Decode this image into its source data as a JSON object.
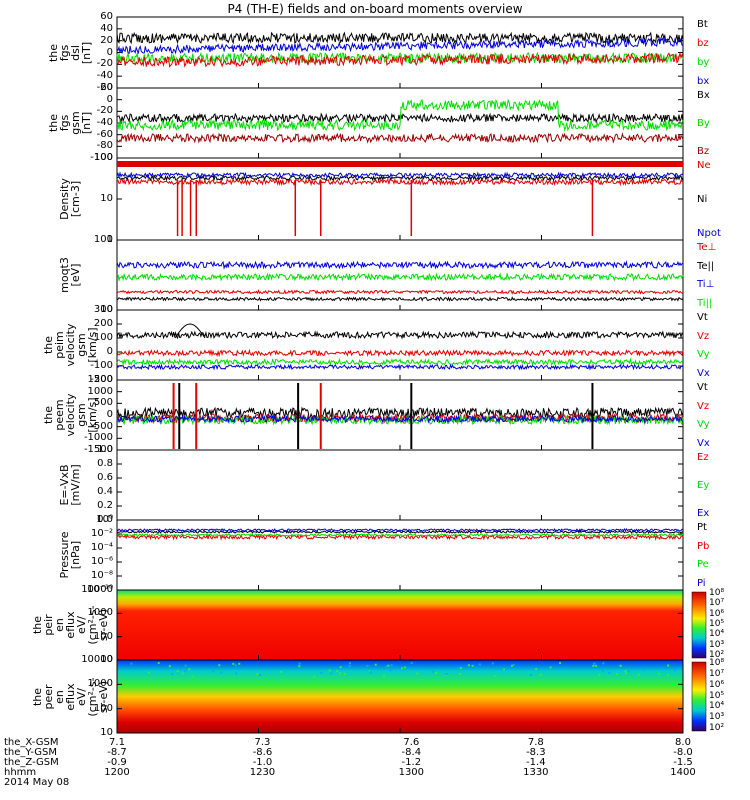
{
  "title": "P4 (TH-E) fields and on-board moments overview",
  "panels": [
    {
      "id": "fgs_dsl",
      "ylabel": [
        "the",
        "fgs",
        "dsl",
        "[nT]"
      ],
      "ticks": [
        "60",
        "40",
        "20",
        "0",
        "-20",
        "-40",
        "-60"
      ],
      "yrange": [
        -60,
        60
      ],
      "legend": [
        {
          "t": "Bt",
          "c": "#000000"
        },
        {
          "t": "bz",
          "c": "#e00000"
        },
        {
          "t": "by",
          "c": "#00dd00"
        },
        {
          "t": "bx",
          "c": "#0000dd"
        }
      ]
    },
    {
      "id": "fgs_gsm",
      "ylabel": [
        "the",
        "fgs",
        "gsm",
        "[nT]"
      ],
      "ticks": [
        "20",
        "0",
        "-20",
        "-40",
        "-60",
        "-80",
        "-100"
      ],
      "yrange": [
        -100,
        20
      ],
      "legend": [
        {
          "t": "Bx",
          "c": "#000000"
        },
        {
          "t": "By",
          "c": "#00dd00"
        },
        {
          "t": "Bz",
          "c": "#990000"
        }
      ]
    },
    {
      "id": "density",
      "ylabel": [
        "Density",
        "[cm-3]"
      ],
      "ticks": [
        "100",
        "10",
        "1"
      ],
      "log": true,
      "legend": [
        {
          "t": "Ne",
          "c": "#e00000"
        },
        {
          "t": "Ni",
          "c": "#000000"
        },
        {
          "t": "Npot",
          "c": "#0000dd"
        }
      ]
    },
    {
      "id": "temp",
      "ylabel": [
        "moqt3",
        "[eV]"
      ],
      "ticks": [
        "100",
        "10"
      ],
      "log": true,
      "legend": [
        {
          "t": "Te⊥",
          "c": "#e00000"
        },
        {
          "t": "Te||",
          "c": "#000000"
        },
        {
          "t": "Ti⊥",
          "c": "#0000dd"
        },
        {
          "t": "Ti||",
          "c": "#00dd00"
        }
      ]
    },
    {
      "id": "peim",
      "ylabel": [
        "the",
        "peim",
        "velocity",
        "gsm",
        "[km/s]"
      ],
      "ticks": [
        "300",
        "200",
        "100",
        "0",
        "-100",
        "-200"
      ],
      "yrange": [
        -200,
        300
      ],
      "legend": [
        {
          "t": "Vt",
          "c": "#000000"
        },
        {
          "t": "Vz",
          "c": "#e00000"
        },
        {
          "t": "Vy",
          "c": "#00dd00"
        },
        {
          "t": "Vx",
          "c": "#0000dd"
        }
      ]
    },
    {
      "id": "peem",
      "ylabel": [
        "the",
        "peem",
        "velocity",
        "gsm",
        "[km/s]"
      ],
      "ticks": [
        "1500",
        "1000",
        "500",
        "0",
        "-500",
        "-1000",
        "-1500"
      ],
      "yrange": [
        -1500,
        1500
      ],
      "legend": [
        {
          "t": "Vt",
          "c": "#000000"
        },
        {
          "t": "Vz",
          "c": "#e00000"
        },
        {
          "t": "Vy",
          "c": "#00dd00"
        },
        {
          "t": "Vx",
          "c": "#0000dd"
        }
      ]
    },
    {
      "id": "efield",
      "ylabel": [
        "E=-VxB",
        "[mV/m]"
      ],
      "ticks": [
        "1.0",
        "0.8",
        "0.6",
        "0.4",
        "0.2",
        "0.0"
      ],
      "yrange": [
        0,
        1
      ],
      "legend": [
        {
          "t": "Ez",
          "c": "#e00000"
        },
        {
          "t": "Ey",
          "c": "#00dd00"
        },
        {
          "t": "Ex",
          "c": "#0000dd"
        }
      ]
    },
    {
      "id": "pressure",
      "ylabel": [
        "Pressure",
        "[nPa]"
      ],
      "ticks": [
        "10⁰",
        "10⁻²",
        "10⁻⁴",
        "10⁻⁶",
        "10⁻⁸",
        "10⁻¹⁰"
      ],
      "log": true,
      "legend": [
        {
          "t": "Pt",
          "c": "#000000"
        },
        {
          "t": "Pb",
          "c": "#e00000"
        },
        {
          "t": "Pe",
          "c": "#00dd00"
        },
        {
          "t": "Pi",
          "c": "#0000dd"
        }
      ]
    },
    {
      "id": "peir",
      "ylabel": [
        "the",
        "peir",
        "en",
        "eflux",
        "eV/",
        "(cm²-s-",
        "sr-eV)"
      ],
      "ticks": [
        "10000",
        "1000",
        "100",
        "10"
      ],
      "log": true,
      "colorbar": [
        "10⁸",
        "10⁷",
        "10⁶",
        "10⁵",
        "10⁴",
        "10³",
        "10²"
      ]
    },
    {
      "id": "peer",
      "ylabel": [
        "the",
        "peer",
        "en",
        "eflux",
        "eV/",
        "(cm²-s-",
        "sr-eV)"
      ],
      "ticks": [
        "10000",
        "1000",
        "100",
        "10"
      ],
      "log": true,
      "colorbar": [
        "10⁸",
        "10⁷",
        "10⁶",
        "10⁵",
        "10⁴",
        "10³",
        "10²"
      ]
    }
  ],
  "xaxis": {
    "rows": [
      {
        "label": "the_X-GSM",
        "values": [
          "7.1",
          "7.3",
          "7.6",
          "7.8",
          "8.0"
        ]
      },
      {
        "label": "the_Y-GSM",
        "values": [
          "-8.7",
          "-8.6",
          "-8.4",
          "-8.3",
          "-8.0"
        ]
      },
      {
        "label": "the_Z-GSM",
        "values": [
          "-0.9",
          "-1.0",
          "-1.2",
          "-1.4",
          "-1.5"
        ]
      },
      {
        "label": "hhmm",
        "values": [
          "1200",
          "1230",
          "1300",
          "1330",
          "1400"
        ]
      }
    ],
    "date": "2014 May 08"
  },
  "chart_data": {
    "type": "line",
    "title": "P4 (TH-E) fields and on-board moments overview",
    "x": [
      "1200",
      "1230",
      "1300",
      "1330",
      "1400"
    ],
    "series": [
      {
        "name": "Bt",
        "values": [
          35,
          32,
          30,
          28,
          30
        ]
      },
      {
        "name": "bz",
        "values": [
          -10,
          -5,
          -5,
          -10,
          0
        ]
      },
      {
        "name": "by",
        "values": [
          0,
          10,
          10,
          12,
          -10
        ]
      },
      {
        "name": "bx",
        "values": [
          -5,
          5,
          15,
          18,
          20
        ]
      },
      {
        "name": "Bx",
        "values": [
          -20,
          -25,
          -5,
          -25,
          -20
        ]
      },
      {
        "name": "By",
        "values": [
          -30,
          -10,
          0,
          -35,
          -40
        ]
      },
      {
        "name": "Bz",
        "values": [
          -70,
          -65,
          -65,
          -75,
          -65
        ]
      },
      {
        "name": "Ne",
        "values": [
          100,
          100,
          100,
          100,
          100
        ]
      },
      {
        "name": "Vt",
        "values": [
          110,
          100,
          100,
          100,
          100
        ]
      },
      {
        "name": "Vz",
        "values": [
          30,
          20,
          20,
          20,
          10
        ]
      },
      {
        "name": "Vy",
        "values": [
          -20,
          -10,
          -20,
          -20,
          -30
        ]
      },
      {
        "name": "Vx",
        "values": [
          -50,
          -50,
          -40,
          -50,
          -50
        ]
      }
    ]
  }
}
